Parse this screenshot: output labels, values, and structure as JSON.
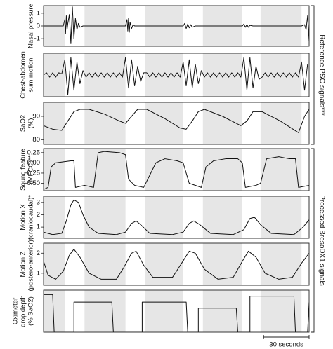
{
  "xlim": [
    0,
    175
  ],
  "shaded_intervals": [
    [
      0,
      14
    ],
    [
      27,
      54
    ],
    [
      67,
      92
    ],
    [
      105,
      131
    ],
    [
      143,
      170
    ]
  ],
  "scale_bar": {
    "value": 30,
    "label": "30 seconds"
  },
  "groups": [
    {
      "label": "Reference PSG signals***"
    },
    {
      "label": "Processed BresoDX1 signals"
    }
  ],
  "chart_data": [
    {
      "type": "line",
      "ylabel": [
        "Nasal pressure"
      ],
      "ylim": [
        -1.6,
        1.6
      ],
      "yticks": [
        1,
        0,
        -1
      ],
      "x": [
        0,
        13,
        14,
        14.5,
        15,
        15.5,
        16,
        17,
        18,
        19,
        20,
        21,
        22,
        23,
        24,
        26,
        54,
        55,
        55.5,
        56,
        56.5,
        57,
        58,
        59,
        60,
        62,
        92,
        93,
        94,
        95,
        96,
        97,
        98,
        100,
        131,
        132,
        133,
        134,
        135,
        136,
        138,
        170,
        172,
        173,
        174,
        175
      ],
      "values": [
        0,
        0,
        0.5,
        -0.6,
        0.8,
        -0.3,
        0.2,
        0.9,
        -1.4,
        1.5,
        -1.0,
        0.6,
        -0.3,
        0.2,
        -0.1,
        0,
        0,
        0.5,
        -0.4,
        0.6,
        -0.5,
        0.3,
        -0.2,
        0.1,
        0,
        0,
        0,
        0.2,
        -0.2,
        0.15,
        -0.15,
        0.1,
        -0.1,
        0,
        0,
        0.15,
        -0.1,
        0.1,
        -0.1,
        0.05,
        0,
        0,
        0.1,
        -0.3,
        0.8,
        -1.2
      ]
    },
    {
      "type": "line",
      "ylabel": [
        "Chest-abdomen",
        "sum motion"
      ],
      "ylim": [
        -1,
        1
      ],
      "yticks": [],
      "x": [
        0,
        2,
        4,
        6,
        8,
        10,
        12,
        14,
        16,
        18,
        20,
        22,
        24,
        26,
        28,
        30,
        32,
        34,
        36,
        38,
        40,
        42,
        44,
        46,
        48,
        50,
        52,
        54,
        56,
        58,
        60,
        62,
        64,
        66,
        68,
        70,
        72,
        74,
        76,
        78,
        80,
        82,
        84,
        86,
        88,
        90,
        92,
        94,
        96,
        98,
        100,
        102,
        104,
        106,
        108,
        110,
        112,
        114,
        116,
        118,
        120,
        122,
        124,
        126,
        128,
        130,
        132,
        134,
        136,
        138,
        140,
        142,
        144,
        146,
        148,
        150,
        152,
        154,
        156,
        158,
        160,
        162,
        164,
        166,
        168,
        170,
        172,
        174
      ],
      "values": [
        0,
        0.1,
        -0.1,
        0.1,
        -0.1,
        0.1,
        0.05,
        0.7,
        -0.9,
        0.8,
        -0.7,
        0.6,
        -0.4,
        0.2,
        -0.1,
        0.1,
        -0.1,
        0.1,
        -0.1,
        0.1,
        -0.1,
        0.1,
        -0.1,
        0.1,
        -0.1,
        0.1,
        -0.1,
        0.8,
        -0.6,
        0.7,
        -0.5,
        0.4,
        -0.3,
        0.1,
        0.1,
        -0.1,
        0.1,
        -0.1,
        0.1,
        -0.1,
        0.1,
        -0.1,
        0.1,
        -0.1,
        0.1,
        -0.1,
        0.6,
        -0.5,
        0.7,
        -0.6,
        0.5,
        -0.4,
        0.2,
        -0.1,
        0.1,
        -0.1,
        0.1,
        -0.1,
        0.1,
        -0.1,
        0.1,
        -0.1,
        0.1,
        -0.1,
        0.1,
        -0.1,
        0.8,
        -0.7,
        0.8,
        -0.6,
        0.4,
        -0.2,
        -0.1,
        0.1,
        -0.1,
        0.1,
        -0.1,
        0.1,
        -0.1,
        0.1,
        -0.1,
        0.1,
        -0.1,
        0.1,
        -0.1,
        0.6,
        -0.7,
        0.5
      ]
    },
    {
      "type": "line",
      "ylabel": [
        "SaO2",
        "(%)"
      ],
      "ylim": [
        78,
        96
      ],
      "yticks": [
        90,
        80
      ],
      "x": [
        0,
        6,
        12,
        16,
        20,
        24,
        30,
        40,
        50,
        54,
        58,
        62,
        68,
        80,
        90,
        94,
        98,
        102,
        106,
        118,
        130,
        134,
        138,
        144,
        156,
        168,
        172,
        175
      ],
      "values": [
        86,
        84.5,
        84,
        88,
        92,
        93,
        93,
        91,
        88,
        87,
        90,
        93,
        93,
        89,
        85,
        84.5,
        88,
        92,
        93,
        90,
        86,
        88,
        92,
        92,
        88,
        83,
        90,
        93
      ]
    },
    {
      "type": "line",
      "ylabel": [
        "Sound feature",
        "(MFCC)**"
      ],
      "ylim": [
        -0.68,
        0.35
      ],
      "yticks": [
        0.25,
        {
          "value": 0,
          "label": "0.00"
        },
        -0.25,
        {
          "value": -0.5,
          "label": "-0.50"
        }
      ],
      "x": [
        0,
        3,
        5,
        8,
        14,
        18,
        20,
        21,
        27,
        33,
        36,
        40,
        50,
        54,
        56,
        60,
        66,
        70,
        74,
        80,
        88,
        92,
        96,
        104,
        107,
        112,
        120,
        128,
        131,
        133,
        140,
        143,
        147,
        155,
        162,
        166,
        168,
        175
      ],
      "values": [
        -0.65,
        -0.6,
        -0.1,
        0,
        0.03,
        0.05,
        0.05,
        -0.6,
        -0.55,
        -0.6,
        0.25,
        0.28,
        0.25,
        0.2,
        -0.4,
        -0.55,
        -0.6,
        -0.3,
        0,
        0.1,
        0.05,
        0,
        -0.5,
        -0.6,
        -0.1,
        0.05,
        0.1,
        0.1,
        0,
        -0.6,
        -0.55,
        -0.5,
        0.1,
        0.15,
        0.1,
        0.1,
        -0.6,
        -0.55
      ]
    },
    {
      "type": "line",
      "ylabel": [
        "Motion X",
        "(craniocaudal)*"
      ],
      "ylim": [
        0.1,
        3.5
      ],
      "yticks": [
        3,
        2,
        1
      ],
      "x": [
        0,
        6,
        12,
        15,
        18,
        20,
        23,
        26,
        30,
        36,
        48,
        54,
        58,
        61,
        64,
        70,
        85,
        92,
        96,
        99,
        103,
        110,
        125,
        132,
        136,
        139,
        143,
        150,
        165,
        171,
        175
      ],
      "values": [
        0.6,
        0.4,
        0.5,
        1.5,
        2.8,
        3.2,
        3.0,
        2.0,
        1.0,
        0.5,
        0.4,
        0.6,
        1.3,
        1.5,
        1.2,
        0.5,
        0.4,
        0.6,
        1.3,
        1.5,
        1.2,
        0.5,
        0.4,
        0.8,
        1.7,
        1.8,
        1.2,
        0.5,
        0.4,
        1.0,
        1.6
      ]
    },
    {
      "type": "line",
      "ylabel": [
        "Motion Z",
        "(postero-anterior)*"
      ],
      "ylim": [
        0.4,
        2.5
      ],
      "yticks": [
        2,
        1
      ],
      "x": [
        0,
        3,
        8,
        13,
        17,
        20,
        24,
        30,
        38,
        48,
        53,
        58,
        61,
        66,
        72,
        85,
        91,
        96,
        100,
        106,
        115,
        125,
        131,
        135,
        140,
        146,
        155,
        164,
        170,
        175
      ],
      "values": [
        1.6,
        0.9,
        0.7,
        1.1,
        1.9,
        2.2,
        1.8,
        1.0,
        0.7,
        0.7,
        1.3,
        2.0,
        2.1,
        1.4,
        0.8,
        0.8,
        1.5,
        2.1,
        2.0,
        1.2,
        0.7,
        0.8,
        1.6,
        2.1,
        1.8,
        1.0,
        0.7,
        0.8,
        1.5,
        2.0
      ]
    },
    {
      "type": "line",
      "ylabel": [
        "Oximeter",
        "drop depth",
        "(% SaO2)"
      ],
      "ylim": [
        0,
        14
      ],
      "yticks": [],
      "x": [
        0,
        6,
        7,
        20,
        20,
        45,
        46,
        65,
        65,
        94,
        95,
        102,
        102,
        127,
        128,
        136,
        136,
        165,
        166,
        174,
        175
      ],
      "values": [
        12.5,
        12.5,
        0,
        0,
        10,
        10,
        0,
        0,
        10,
        10,
        0,
        0,
        8,
        8,
        0,
        0,
        12,
        12,
        0,
        0,
        10
      ]
    }
  ]
}
